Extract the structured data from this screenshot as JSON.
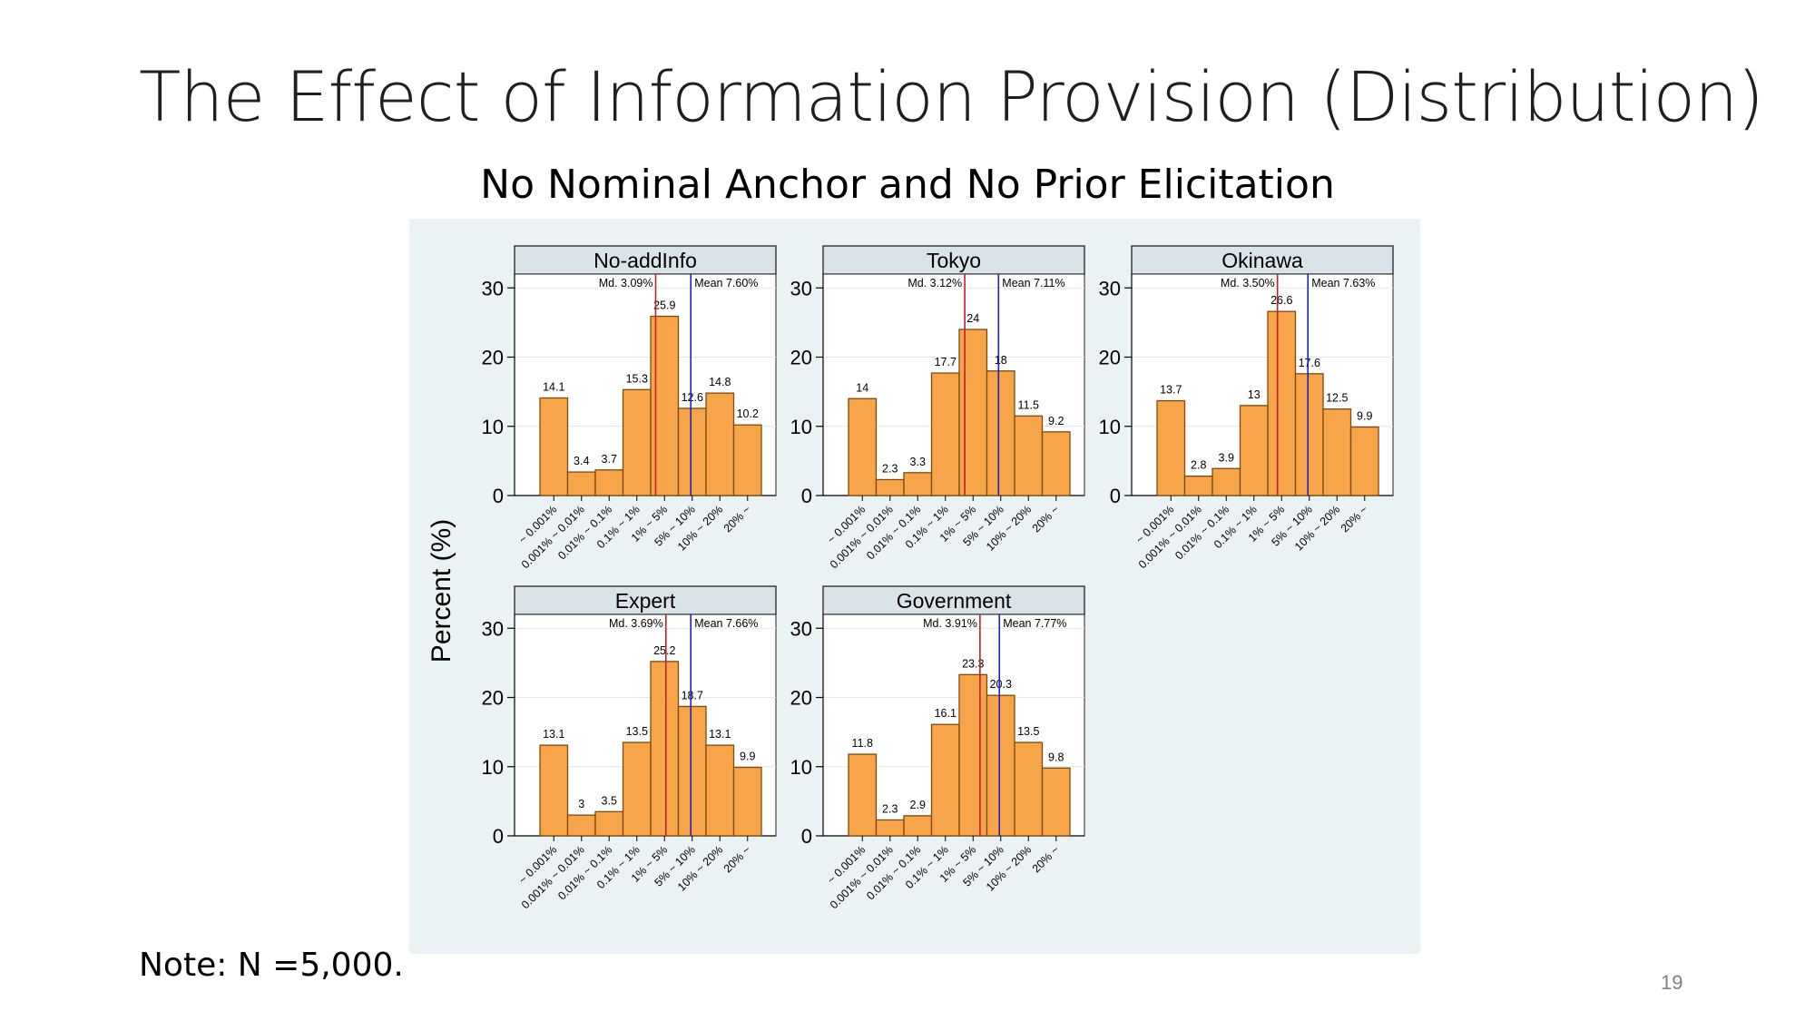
{
  "slide": {
    "title": "The Effect of Information Provision (Distribution)",
    "subtitle": "No Nominal Anchor and No Prior Elicitation",
    "note": "Note: N =5,000.",
    "page_number": "19"
  },
  "chart_data": {
    "type": "bar",
    "ylabel": "Percent (%)",
    "ylim": [
      0,
      32
    ],
    "yticks": [
      0,
      10,
      20,
      30
    ],
    "categories": [
      "~ 0.001%",
      "0.001% ~ 0.01%",
      "0.01% ~ 0.1%",
      "0.1% ~ 1%",
      "1% ~ 5%",
      "5% ~ 10%",
      "10% ~ 20%",
      "20% ~"
    ],
    "colors": {
      "bar": "#F8A448",
      "bar_edge": "#7a4a10",
      "median_line": "#c0202a",
      "mean_line": "#2020c0",
      "plot_bg": "#eaf2f3"
    },
    "panels": [
      {
        "title": "No-addInfo",
        "values": [
          14.1,
          3.4,
          3.7,
          15.3,
          25.9,
          12.6,
          14.8,
          10.2
        ],
        "labels": [
          "14.1",
          "3.4",
          "3.7",
          "15.3",
          "25.9",
          "12.6",
          "14.8",
          "10.2"
        ],
        "median_label": "Md. 3.09%",
        "mean_label": "Mean 7.60%"
      },
      {
        "title": "Tokyo",
        "values": [
          14,
          2.3,
          3.3,
          17.7,
          24,
          18,
          11.5,
          9.2
        ],
        "labels": [
          "14",
          "2.3",
          "3.3",
          "17.7",
          "24",
          "18",
          "11.5",
          "9.2"
        ],
        "median_label": "Md. 3.12%",
        "mean_label": "Mean 7.11%"
      },
      {
        "title": "Okinawa",
        "values": [
          13.7,
          2.8,
          3.9,
          13,
          26.6,
          17.6,
          12.5,
          9.9
        ],
        "labels": [
          "13.7",
          "2.8",
          "3.9",
          "13",
          "26.6",
          "17.6",
          "12.5",
          "9.9"
        ],
        "median_label": "Md. 3.50%",
        "mean_label": "Mean 7.63%"
      },
      {
        "title": "Expert",
        "values": [
          13.1,
          3,
          3.5,
          13.5,
          25.2,
          18.7,
          13.1,
          9.9
        ],
        "labels": [
          "13.1",
          "3",
          "3.5",
          "13.5",
          "25.2",
          "18.7",
          "13.1",
          "9.9"
        ],
        "median_label": "Md. 3.69%",
        "mean_label": "Mean 7.66%"
      },
      {
        "title": "Government",
        "values": [
          11.8,
          2.3,
          2.9,
          16.1,
          23.3,
          20.3,
          13.5,
          9.8
        ],
        "labels": [
          "11.8",
          "2.3",
          "2.9",
          "16.1",
          "23.3",
          "20.3",
          "13.5",
          "9.8"
        ],
        "median_label": "Md. 3.91%",
        "mean_label": "Mean 7.77%"
      }
    ]
  }
}
